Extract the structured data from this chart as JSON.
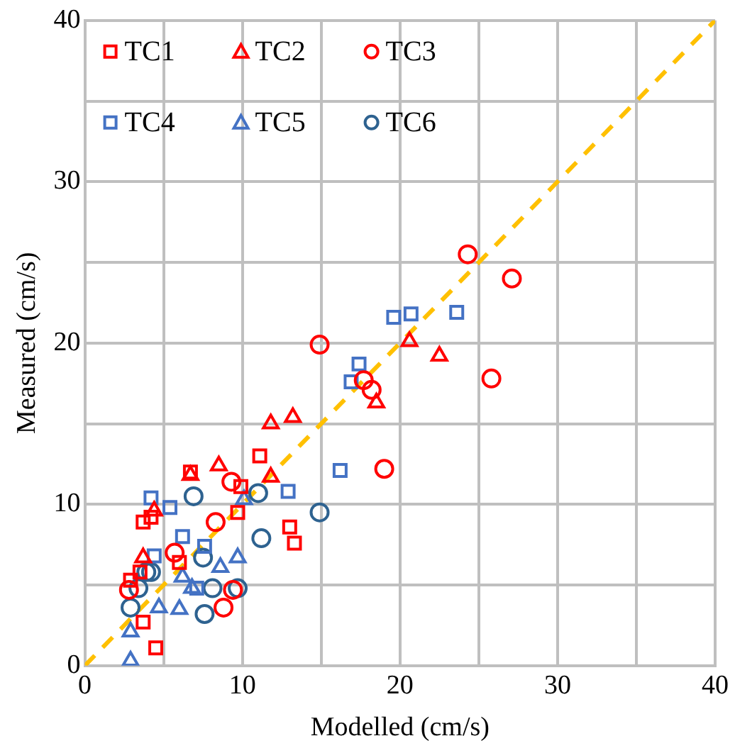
{
  "chart_data": {
    "type": "scatter",
    "xlabel": "Modelled (cm/s)",
    "ylabel": "Measured (cm/s)",
    "xlim": [
      0,
      40
    ],
    "ylim": [
      0,
      40
    ],
    "xticks": [
      0,
      {
        "value": 5,
        "label": null
      },
      10,
      {
        "value": 15,
        "label": null
      },
      20,
      {
        "value": 25,
        "label": null
      },
      30,
      {
        "value": 35,
        "label": null
      },
      40
    ],
    "yticks": [
      0,
      {
        "value": 5,
        "label": null
      },
      10,
      {
        "value": 15,
        "label": null
      },
      20,
      {
        "value": 25,
        "label": null
      },
      30,
      {
        "value": 35,
        "label": null
      },
      40
    ],
    "grid": true,
    "legend": "top left",
    "series": [
      {
        "name": "TC1",
        "color": "#ff0000",
        "marker": "square",
        "x": [
          11.1,
          9.9,
          9.7,
          13.0,
          13.3,
          6.7,
          3.7,
          4.2,
          6.0,
          3.5,
          3.7,
          4.5,
          2.9
        ],
        "values": [
          13.0,
          11.1,
          9.5,
          8.6,
          7.6,
          12.0,
          8.9,
          9.2,
          6.4,
          5.8,
          2.7,
          1.1,
          5.3
        ]
      },
      {
        "name": "TC2",
        "color": "#ff0000",
        "marker": "triangle",
        "x": [
          20.6,
          22.5,
          18.5,
          11.8,
          13.2,
          8.5,
          11.8,
          6.7,
          4.4,
          3.7
        ],
        "values": [
          20.1,
          19.2,
          16.3,
          15.0,
          15.4,
          12.4,
          11.7,
          11.8,
          9.6,
          6.7
        ]
      },
      {
        "name": "TC3",
        "color": "#ff0000",
        "marker": "circle",
        "x": [
          24.3,
          27.1,
          14.9,
          25.8,
          17.7,
          18.2,
          19.0,
          9.3,
          8.3,
          8.8,
          5.7,
          2.8,
          9.4
        ],
        "values": [
          25.5,
          24.0,
          19.9,
          17.8,
          17.7,
          17.1,
          12.2,
          11.4,
          8.9,
          3.6,
          7.0,
          4.7,
          4.7
        ]
      },
      {
        "name": "TC4",
        "color": "#4472c4",
        "marker": "square",
        "x": [
          19.6,
          20.7,
          23.6,
          17.4,
          16.9,
          16.2,
          4.2,
          5.4,
          12.9,
          6.2,
          7.6,
          4.4,
          7.1
        ],
        "values": [
          21.6,
          21.8,
          21.9,
          18.7,
          17.6,
          12.1,
          10.4,
          9.8,
          10.8,
          8.0,
          7.4,
          6.8,
          4.8
        ]
      },
      {
        "name": "TC5",
        "color": "#4472c4",
        "marker": "triangle",
        "x": [
          10.1,
          9.7,
          8.6,
          6.2,
          4.7,
          6.0,
          2.9,
          2.9,
          6.8
        ],
        "values": [
          10.3,
          6.7,
          6.1,
          5.5,
          3.6,
          3.5,
          2.1,
          0.3,
          4.8
        ]
      },
      {
        "name": "TC6",
        "color": "#2e6290",
        "marker": "circle",
        "x": [
          6.9,
          11.0,
          14.9,
          11.2,
          7.5,
          3.9,
          3.4,
          2.9,
          8.1,
          9.7,
          7.6,
          4.2
        ],
        "values": [
          10.5,
          10.7,
          9.5,
          7.9,
          6.7,
          5.8,
          4.8,
          3.6,
          4.8,
          4.8,
          3.2,
          5.8
        ]
      },
      {
        "type": "line",
        "color": "#ffc000",
        "line_style": "dashed",
        "marker": "none",
        "x": [
          0,
          40
        ],
        "values": [
          0,
          40
        ]
      }
    ]
  }
}
